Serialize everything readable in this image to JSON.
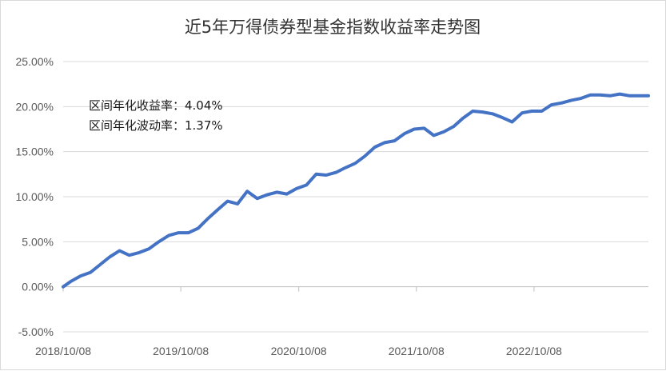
{
  "chart_data": {
    "type": "line",
    "title": "近5年万得债券型基金指数收益率走势图",
    "xlabel": "",
    "ylabel": "",
    "ylim": [
      -0.05,
      0.25
    ],
    "y_ticks": [
      "-5.00%",
      "0.00%",
      "5.00%",
      "10.00%",
      "15.00%",
      "20.00%",
      "25.00%"
    ],
    "x_ticks": [
      "2018/10/08",
      "2019/10/08",
      "2020/10/08",
      "2021/10/08",
      "2022/10/08"
    ],
    "x_start": "2018/10/08",
    "x_end": "2023/09/28",
    "grid": "horizontal",
    "legend": "none",
    "line_color": "#4472c4",
    "annotations": [
      "区间年化收益率：4.04%",
      "区间年化波动率：1.37%"
    ],
    "series": [
      {
        "x": [
          "2018/10/08",
          "2018/11/01",
          "2018/12/01",
          "2019/01/01",
          "2019/02/01",
          "2019/03/01",
          "2019/04/01",
          "2019/05/01",
          "2019/06/01",
          "2019/07/01",
          "2019/08/01",
          "2019/09/01",
          "2019/10/01",
          "2019/11/01",
          "2019/12/01",
          "2020/01/01",
          "2020/02/01",
          "2020/03/01",
          "2020/04/01",
          "2020/05/01",
          "2020/06/01",
          "2020/07/01",
          "2020/08/01",
          "2020/09/01",
          "2020/10/01",
          "2020/11/01",
          "2020/12/01",
          "2021/01/01",
          "2021/02/01",
          "2021/03/01",
          "2021/04/01",
          "2021/05/01",
          "2021/06/01",
          "2021/07/01",
          "2021/08/01",
          "2021/09/01",
          "2021/10/01",
          "2021/11/01",
          "2021/12/01",
          "2022/01/01",
          "2022/02/01",
          "2022/03/01",
          "2022/04/01",
          "2022/05/01",
          "2022/06/01",
          "2022/07/01",
          "2022/08/01",
          "2022/09/01",
          "2022/10/01",
          "2022/11/01",
          "2022/12/01",
          "2023/01/01",
          "2023/02/01",
          "2023/03/01",
          "2023/04/01",
          "2023/05/01",
          "2023/06/01",
          "2023/07/01",
          "2023/08/01",
          "2023/09/28"
        ],
        "values": [
          0.0,
          0.006,
          0.012,
          0.016,
          0.025,
          0.033,
          0.04,
          0.035,
          0.038,
          0.042,
          0.05,
          0.057,
          0.06,
          0.06,
          0.065,
          0.076,
          0.086,
          0.095,
          0.092,
          0.106,
          0.098,
          0.102,
          0.105,
          0.103,
          0.109,
          0.113,
          0.125,
          0.124,
          0.127,
          0.132,
          0.137,
          0.145,
          0.155,
          0.16,
          0.162,
          0.17,
          0.175,
          0.176,
          0.168,
          0.172,
          0.178,
          0.187,
          0.195,
          0.194,
          0.192,
          0.188,
          0.183,
          0.193,
          0.195,
          0.195,
          0.202,
          0.204,
          0.207,
          0.209,
          0.213,
          0.213,
          0.212,
          0.214,
          0.212,
          0.212
        ]
      }
    ]
  }
}
